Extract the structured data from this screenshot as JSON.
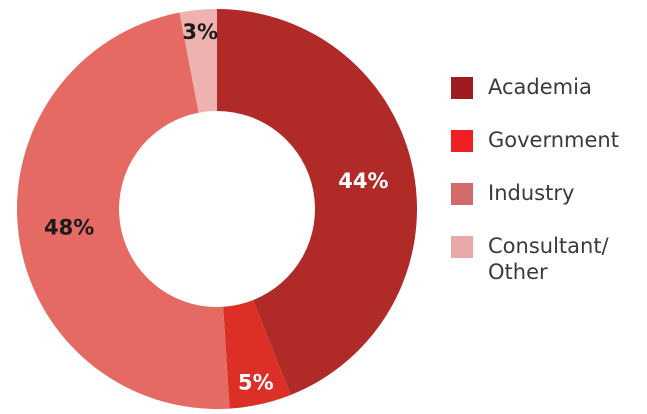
{
  "chart_data": {
    "type": "pie",
    "donut": true,
    "title": "",
    "categories": [
      "Academia",
      "Government",
      "Industry",
      "Consultant/ Other"
    ],
    "values": [
      44,
      5,
      48,
      3
    ],
    "labels": [
      "44%",
      "5%",
      "48%",
      "3%"
    ],
    "colors": [
      "#b02a27",
      "#dc3027",
      "#e56a64",
      "#eeb2b0"
    ],
    "label_colors": [
      "#ffffff",
      "#ffffff",
      "#1a1a1a",
      "#1a1a1a"
    ],
    "legend_colors": [
      "#9e1c20",
      "#ee2024",
      "#d16b6a",
      "#e9a9a8"
    ],
    "legend_position": "right",
    "start": "top",
    "direction": "clockwise"
  }
}
